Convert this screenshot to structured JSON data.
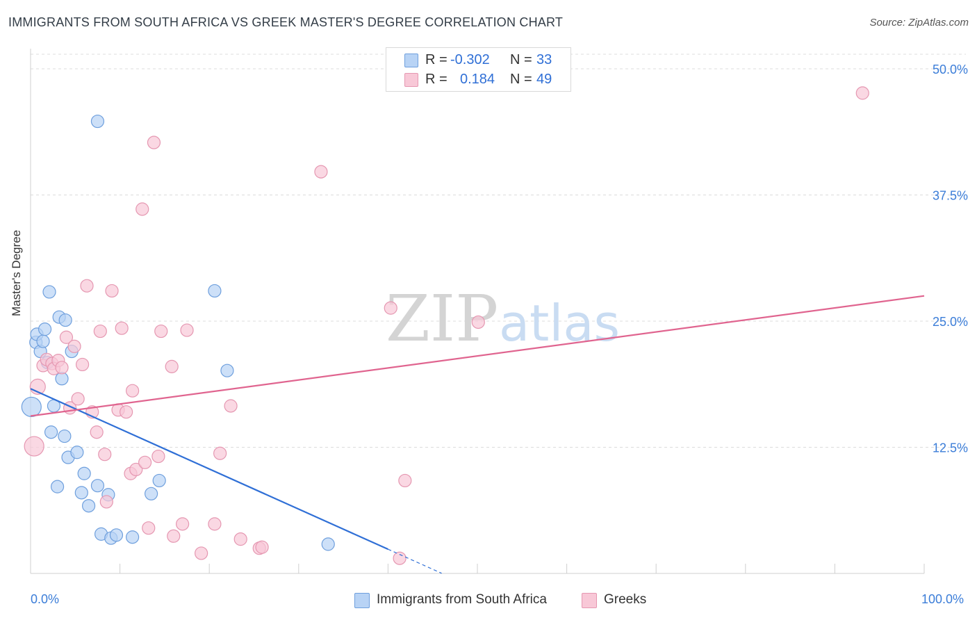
{
  "header": {
    "title": "IMMIGRANTS FROM SOUTH AFRICA VS GREEK MASTER'S DEGREE CORRELATION CHART",
    "source": "Source: ZipAtlas.com"
  },
  "legend_top": {
    "rows": [
      {
        "r_label": "R =",
        "r_value": "-0.302",
        "n_label": "N =",
        "n_value": "33"
      },
      {
        "r_label": "R =",
        "r_value": "0.184",
        "n_label": "N =",
        "n_value": "49"
      }
    ]
  },
  "legend_bottom": {
    "items": [
      {
        "label": "Immigrants from South Africa"
      },
      {
        "label": "Greeks"
      }
    ]
  },
  "watermark": {
    "zip": "ZIP",
    "atlas": "atlas"
  },
  "colors": {
    "blue_fill": "#b8d3f5",
    "blue_stroke": "#6e9fdd",
    "blue_line": "#2f6fd6",
    "pink_fill": "#f8c8d7",
    "pink_stroke": "#e597b1",
    "pink_line": "#e0648f",
    "grid": "#dcdcdc",
    "tick_text": "#3b7dd8"
  },
  "chart_data": {
    "type": "scatter",
    "title": "IMMIGRANTS FROM SOUTH AFRICA VS GREEK MASTER'S DEGREE CORRELATION CHART",
    "xlabel": "",
    "ylabel": "Master's Degree",
    "xlim": [
      0,
      100
    ],
    "ylim": [
      0,
      52
    ],
    "x_tick_labels": [
      "0.0%",
      "100.0%"
    ],
    "y_ticks": [
      12.5,
      25.0,
      37.5,
      50.0
    ],
    "y_tick_labels": [
      "12.5%",
      "25.0%",
      "37.5%",
      "50.0%"
    ],
    "grid": true,
    "series": [
      {
        "name": "Immigrants from South Africa",
        "color": "#b8d3f5",
        "r": -0.302,
        "n": 33,
        "points": [
          [
            0.1,
            16.5,
            14
          ],
          [
            0.6,
            22.9,
            9
          ],
          [
            0.7,
            23.7,
            9
          ],
          [
            1.1,
            22.0,
            9
          ],
          [
            1.4,
            23.0,
            9
          ],
          [
            1.6,
            24.2,
            9
          ],
          [
            1.9,
            20.9,
            9
          ],
          [
            2.1,
            27.9,
            9
          ],
          [
            2.3,
            14.0,
            9
          ],
          [
            2.6,
            16.6,
            9
          ],
          [
            3.0,
            8.6,
            9
          ],
          [
            3.2,
            25.4,
            9
          ],
          [
            3.5,
            19.3,
            9
          ],
          [
            3.8,
            13.6,
            9
          ],
          [
            3.9,
            25.1,
            9
          ],
          [
            4.2,
            11.5,
            9
          ],
          [
            4.6,
            22.0,
            9
          ],
          [
            5.2,
            12.0,
            9
          ],
          [
            5.7,
            8.0,
            9
          ],
          [
            6.0,
            9.9,
            9
          ],
          [
            6.5,
            6.7,
            9
          ],
          [
            7.5,
            8.7,
            9
          ],
          [
            7.9,
            3.9,
            9
          ],
          [
            7.5,
            44.8,
            9
          ],
          [
            8.7,
            7.8,
            9
          ],
          [
            9.0,
            3.5,
            9
          ],
          [
            9.6,
            3.8,
            9
          ],
          [
            11.4,
            3.6,
            9
          ],
          [
            13.5,
            7.9,
            9
          ],
          [
            14.4,
            9.2,
            9
          ],
          [
            20.6,
            28.0,
            9
          ],
          [
            22.0,
            20.1,
            9
          ],
          [
            33.3,
            2.9,
            9
          ]
        ]
      },
      {
        "name": "Greeks",
        "color": "#f8c8d7",
        "r": 0.184,
        "n": 49,
        "points": [
          [
            0.4,
            12.6,
            14
          ],
          [
            0.8,
            18.5,
            11
          ],
          [
            1.4,
            20.6,
            9
          ],
          [
            1.8,
            21.2,
            9
          ],
          [
            2.4,
            20.8,
            9
          ],
          [
            2.6,
            20.3,
            9
          ],
          [
            3.1,
            21.1,
            9
          ],
          [
            3.5,
            20.4,
            9
          ],
          [
            4.0,
            23.4,
            9
          ],
          [
            4.4,
            16.4,
            9
          ],
          [
            4.9,
            22.5,
            9
          ],
          [
            5.3,
            17.3,
            9
          ],
          [
            5.8,
            20.7,
            9
          ],
          [
            6.3,
            28.5,
            9
          ],
          [
            6.9,
            16.0,
            9
          ],
          [
            7.4,
            14.0,
            9
          ],
          [
            7.8,
            24.0,
            9
          ],
          [
            8.3,
            11.8,
            9
          ],
          [
            8.5,
            7.1,
            9
          ],
          [
            9.1,
            28.0,
            9
          ],
          [
            9.8,
            16.2,
            9
          ],
          [
            10.2,
            24.3,
            9
          ],
          [
            10.7,
            16.0,
            9
          ],
          [
            11.2,
            9.9,
            9
          ],
          [
            11.4,
            18.1,
            9
          ],
          [
            11.8,
            10.3,
            9
          ],
          [
            12.5,
            36.1,
            9
          ],
          [
            12.8,
            11.0,
            9
          ],
          [
            13.2,
            4.5,
            9
          ],
          [
            13.8,
            42.7,
            9
          ],
          [
            14.3,
            11.6,
            9
          ],
          [
            14.6,
            24.0,
            9
          ],
          [
            15.8,
            20.5,
            9
          ],
          [
            16.0,
            3.7,
            9
          ],
          [
            17.0,
            4.9,
            9
          ],
          [
            17.5,
            24.1,
            9
          ],
          [
            19.1,
            2.0,
            9
          ],
          [
            20.6,
            4.9,
            9
          ],
          [
            21.2,
            11.9,
            9
          ],
          [
            22.4,
            16.6,
            9
          ],
          [
            23.5,
            3.4,
            9
          ],
          [
            25.6,
            2.5,
            9
          ],
          [
            25.9,
            2.6,
            9
          ],
          [
            32.5,
            39.8,
            9
          ],
          [
            41.3,
            1.5,
            9
          ],
          [
            40.3,
            26.3,
            9
          ],
          [
            41.9,
            9.2,
            9
          ],
          [
            50.1,
            24.9,
            9
          ],
          [
            93.1,
            47.6,
            9
          ]
        ]
      }
    ],
    "trend_lines": [
      {
        "series": "Immigrants from South Africa",
        "x0": 0,
        "y0": 18.3,
        "x1": 40.0,
        "y1": 2.4,
        "dash_to_x": 46.0
      },
      {
        "series": "Greeks",
        "x0": 0,
        "y0": 15.6,
        "x1": 100,
        "y1": 27.5
      }
    ]
  }
}
